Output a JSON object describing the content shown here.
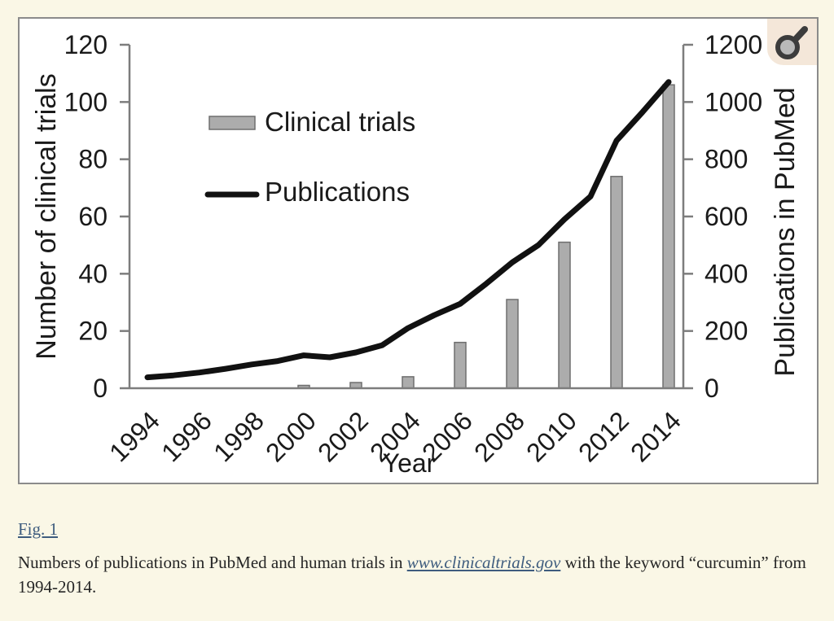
{
  "colors": {
    "page_background": "#FAF7E6",
    "panel_background": "#FFFFFF",
    "panel_border": "#8B8B8B",
    "bar_fill": "#ACACAC",
    "bar_border": "#6E6E6E",
    "line_color": "#111111",
    "axis_color": "#7D7D7D",
    "text_color": "#1A1A1A",
    "link_color": "#3E5C7E",
    "zoom_icon_background": "#F4E7D9",
    "zoom_icon_color": "#3C3C3C"
  },
  "chart_data": {
    "type": "combo",
    "title": "",
    "xlabel": "Year",
    "x_ticks": [
      "1994",
      "1996",
      "1998",
      "2000",
      "2002",
      "2004",
      "2006",
      "2008",
      "2010",
      "2012",
      "2014"
    ],
    "left_axis": {
      "label": "Number of clinical trials",
      "range": [
        0,
        120
      ],
      "ticks": [
        0,
        20,
        40,
        60,
        80,
        100,
        120
      ]
    },
    "right_axis": {
      "label": "Publications in PubMed",
      "range": [
        0,
        1200
      ],
      "ticks": [
        0,
        200,
        400,
        600,
        800,
        1000,
        1200
      ]
    },
    "grid": false,
    "legend_position": "top-left",
    "series": [
      {
        "name": "Clinical trials",
        "type": "bar",
        "axis": "left",
        "x": [
          2000,
          2002,
          2004,
          2006,
          2008,
          2010,
          2012,
          2014
        ],
        "values": [
          1,
          2,
          4,
          16,
          31,
          51,
          74,
          106
        ]
      },
      {
        "name": "Publications",
        "type": "line",
        "axis": "right",
        "x": [
          1994,
          1995,
          1996,
          1997,
          1998,
          1999,
          2000,
          2001,
          2002,
          2003,
          2004,
          2005,
          2006,
          2007,
          2008,
          2009,
          2010,
          2011,
          2012,
          2013,
          2014
        ],
        "values": [
          38,
          45,
          55,
          68,
          83,
          95,
          115,
          108,
          125,
          150,
          210,
          255,
          295,
          365,
          440,
          500,
          590,
          670,
          865,
          965,
          1070
        ]
      }
    ]
  },
  "caption": {
    "figure_link": "Fig. 1",
    "text_before_link": "Numbers of publications in PubMed and human trials in ",
    "link": "www.clinicaltrials.gov",
    "text_after_link": " with the keyword “curcumin” from 1994-2014."
  }
}
